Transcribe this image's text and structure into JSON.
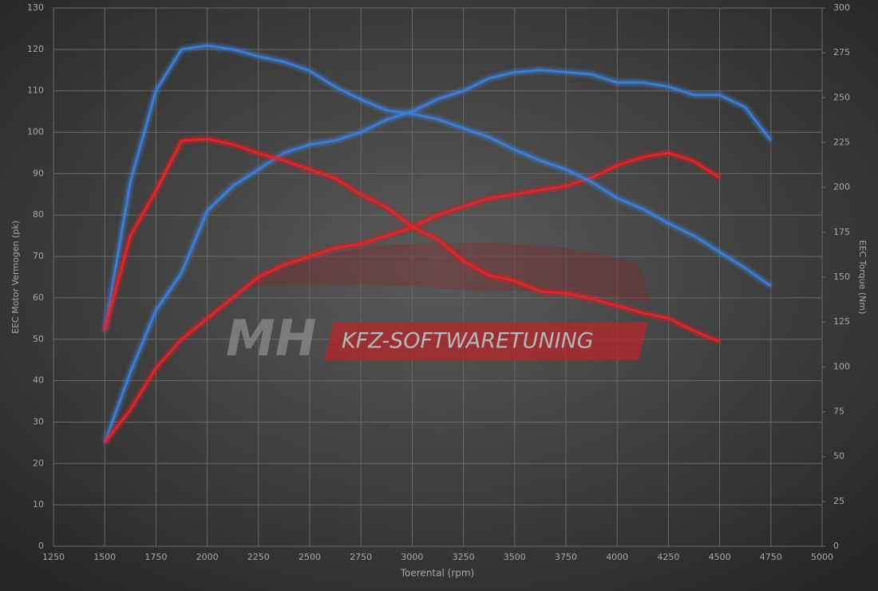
{
  "chart_data": {
    "type": "line",
    "xlabel": "Toerental (rpm)",
    "ylabel": "EEC Motor Vermogen (pk)",
    "y2label": "EEC Torque (Nm)",
    "x": [
      1500,
      1625,
      1750,
      1875,
      2000,
      2125,
      2250,
      2375,
      2500,
      2625,
      2750,
      2875,
      3000,
      3125,
      3250,
      3375,
      3500,
      3625,
      3750,
      3875,
      4000,
      4125,
      4250,
      4375,
      4500,
      4625,
      4750
    ],
    "series": [
      {
        "color": "#3f7fd6",
        "values": [
          25,
          42,
          57,
          66,
          81,
          87,
          91,
          95,
          97,
          98,
          100,
          103,
          105,
          108,
          110,
          113,
          114.5,
          115,
          114.5,
          114,
          112,
          112,
          111,
          109,
          109,
          106,
          98
        ]
      },
      {
        "color": "#e0262b",
        "values": [
          25,
          33,
          43,
          50,
          55,
          60,
          65,
          68,
          70,
          72,
          73,
          75,
          77,
          80,
          82,
          84,
          85,
          86,
          87,
          89,
          92,
          94,
          95,
          93,
          89,
          null,
          null
        ]
      },
      {
        "color": "#3f7fd6",
        "axis": "y2",
        "values": [
          120,
          203,
          254,
          277,
          279,
          277,
          273,
          270,
          265,
          256,
          249,
          243,
          241,
          238,
          233,
          228,
          221,
          215,
          210,
          203,
          194,
          188,
          180,
          173,
          164,
          155,
          145
        ]
      },
      {
        "color": "#e0262b",
        "axis": "y2",
        "values": [
          120,
          173,
          198,
          226,
          227,
          224,
          219,
          215,
          210,
          205,
          196,
          189,
          178,
          171,
          159,
          151,
          148,
          142,
          141,
          138,
          134,
          130,
          127,
          120,
          114,
          null,
          null
        ]
      }
    ],
    "xlim": [
      1250,
      5000
    ],
    "xticks": [
      1250,
      1500,
      1750,
      2000,
      2250,
      2500,
      2750,
      3000,
      3250,
      3500,
      3750,
      4000,
      4250,
      4500,
      4750,
      5000
    ],
    "ylim": [
      0,
      130
    ],
    "yticks": [
      0,
      10,
      20,
      30,
      40,
      50,
      60,
      70,
      80,
      90,
      100,
      110,
      120,
      130
    ],
    "y2lim": [
      0,
      300
    ],
    "y2ticks": [
      0,
      25,
      50,
      75,
      100,
      125,
      150,
      175,
      200,
      225,
      250,
      275,
      300
    ],
    "grid": true
  },
  "watermark": {
    "logo": "MH",
    "text": "KFZ-SOFTWARETUNING"
  }
}
